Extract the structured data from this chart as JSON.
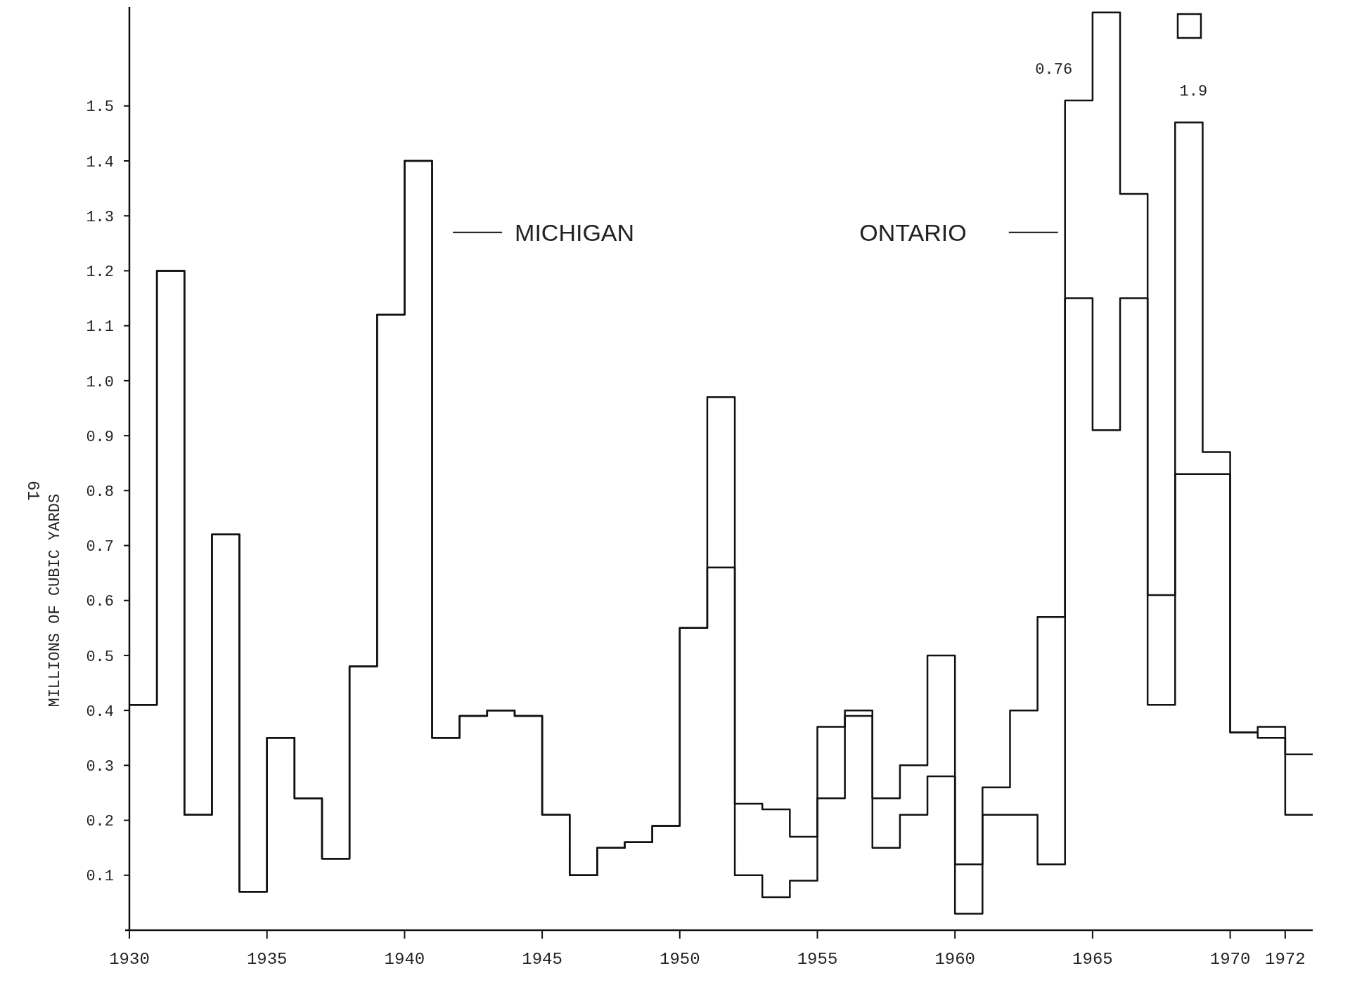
{
  "chart_data": {
    "type": "step",
    "ylabel": "MILLIONS OF CUBIC YARDS",
    "x": [
      1930,
      1931,
      1932,
      1933,
      1934,
      1935,
      1936,
      1937,
      1938,
      1939,
      1940,
      1941,
      1942,
      1943,
      1944,
      1945,
      1946,
      1947,
      1948,
      1949,
      1950,
      1951,
      1952,
      1953,
      1954,
      1955,
      1956,
      1957,
      1958,
      1959,
      1960,
      1961,
      1962,
      1963,
      1964,
      1965,
      1966,
      1967,
      1968,
      1969,
      1970,
      1971,
      1972,
      1973
    ],
    "series": [
      {
        "color": "#111111",
        "values": [
          0.41,
          1.2,
          0.21,
          0.72,
          0.07,
          0.35,
          0.24,
          0.13,
          0.48,
          1.12,
          1.4,
          0.35,
          0.39,
          0.4,
          0.39,
          0.21,
          0.1,
          0.15,
          0.16,
          0.19,
          0.55,
          0.97,
          0.23,
          0.22,
          0.17,
          0.37,
          0.4,
          0.24,
          0.3,
          0.5,
          0.12,
          0.26,
          0.4,
          0.57,
          1.51,
          1.67,
          1.34,
          0.61,
          1.47,
          0.87,
          0.36,
          0.37,
          0.32,
          0.32
        ]
      },
      {
        "color": "#111111",
        "values": [
          0.41,
          1.2,
          0.21,
          0.72,
          0.07,
          0.35,
          0.24,
          0.13,
          0.48,
          1.12,
          1.4,
          0.35,
          0.39,
          0.4,
          0.39,
          0.21,
          0.1,
          0.15,
          0.16,
          0.19,
          0.55,
          0.66,
          0.1,
          0.06,
          0.09,
          0.24,
          0.39,
          0.15,
          0.21,
          0.28,
          0.03,
          0.21,
          0.21,
          0.12,
          1.15,
          0.91,
          1.15,
          0.41,
          0.83,
          0.83,
          0.36,
          0.35,
          0.21,
          0.21
        ]
      }
    ],
    "xlim": [
      1930,
      1973
    ],
    "ylim": [
      0,
      1.68
    ],
    "xticks": [
      1930,
      1935,
      1940,
      1945,
      1950,
      1955,
      1960,
      1965,
      1970,
      1972
    ],
    "yticks": [
      0.1,
      0.2,
      0.3,
      0.4,
      0.5,
      0.6,
      0.7,
      0.8,
      0.9,
      {
        "value": 1,
        "label": "1.0"
      },
      1.1,
      1.2,
      1.3,
      1.4,
      1.5
    ],
    "annotations": [
      "MICHIGAN",
      "ONTARIO",
      {
        "text": "0.76",
        "x": 1964,
        "y": 1.51
      },
      {
        "text": "1.9",
        "x": 1968,
        "y": 1.47
      },
      "61"
    ],
    "grid": false
  }
}
